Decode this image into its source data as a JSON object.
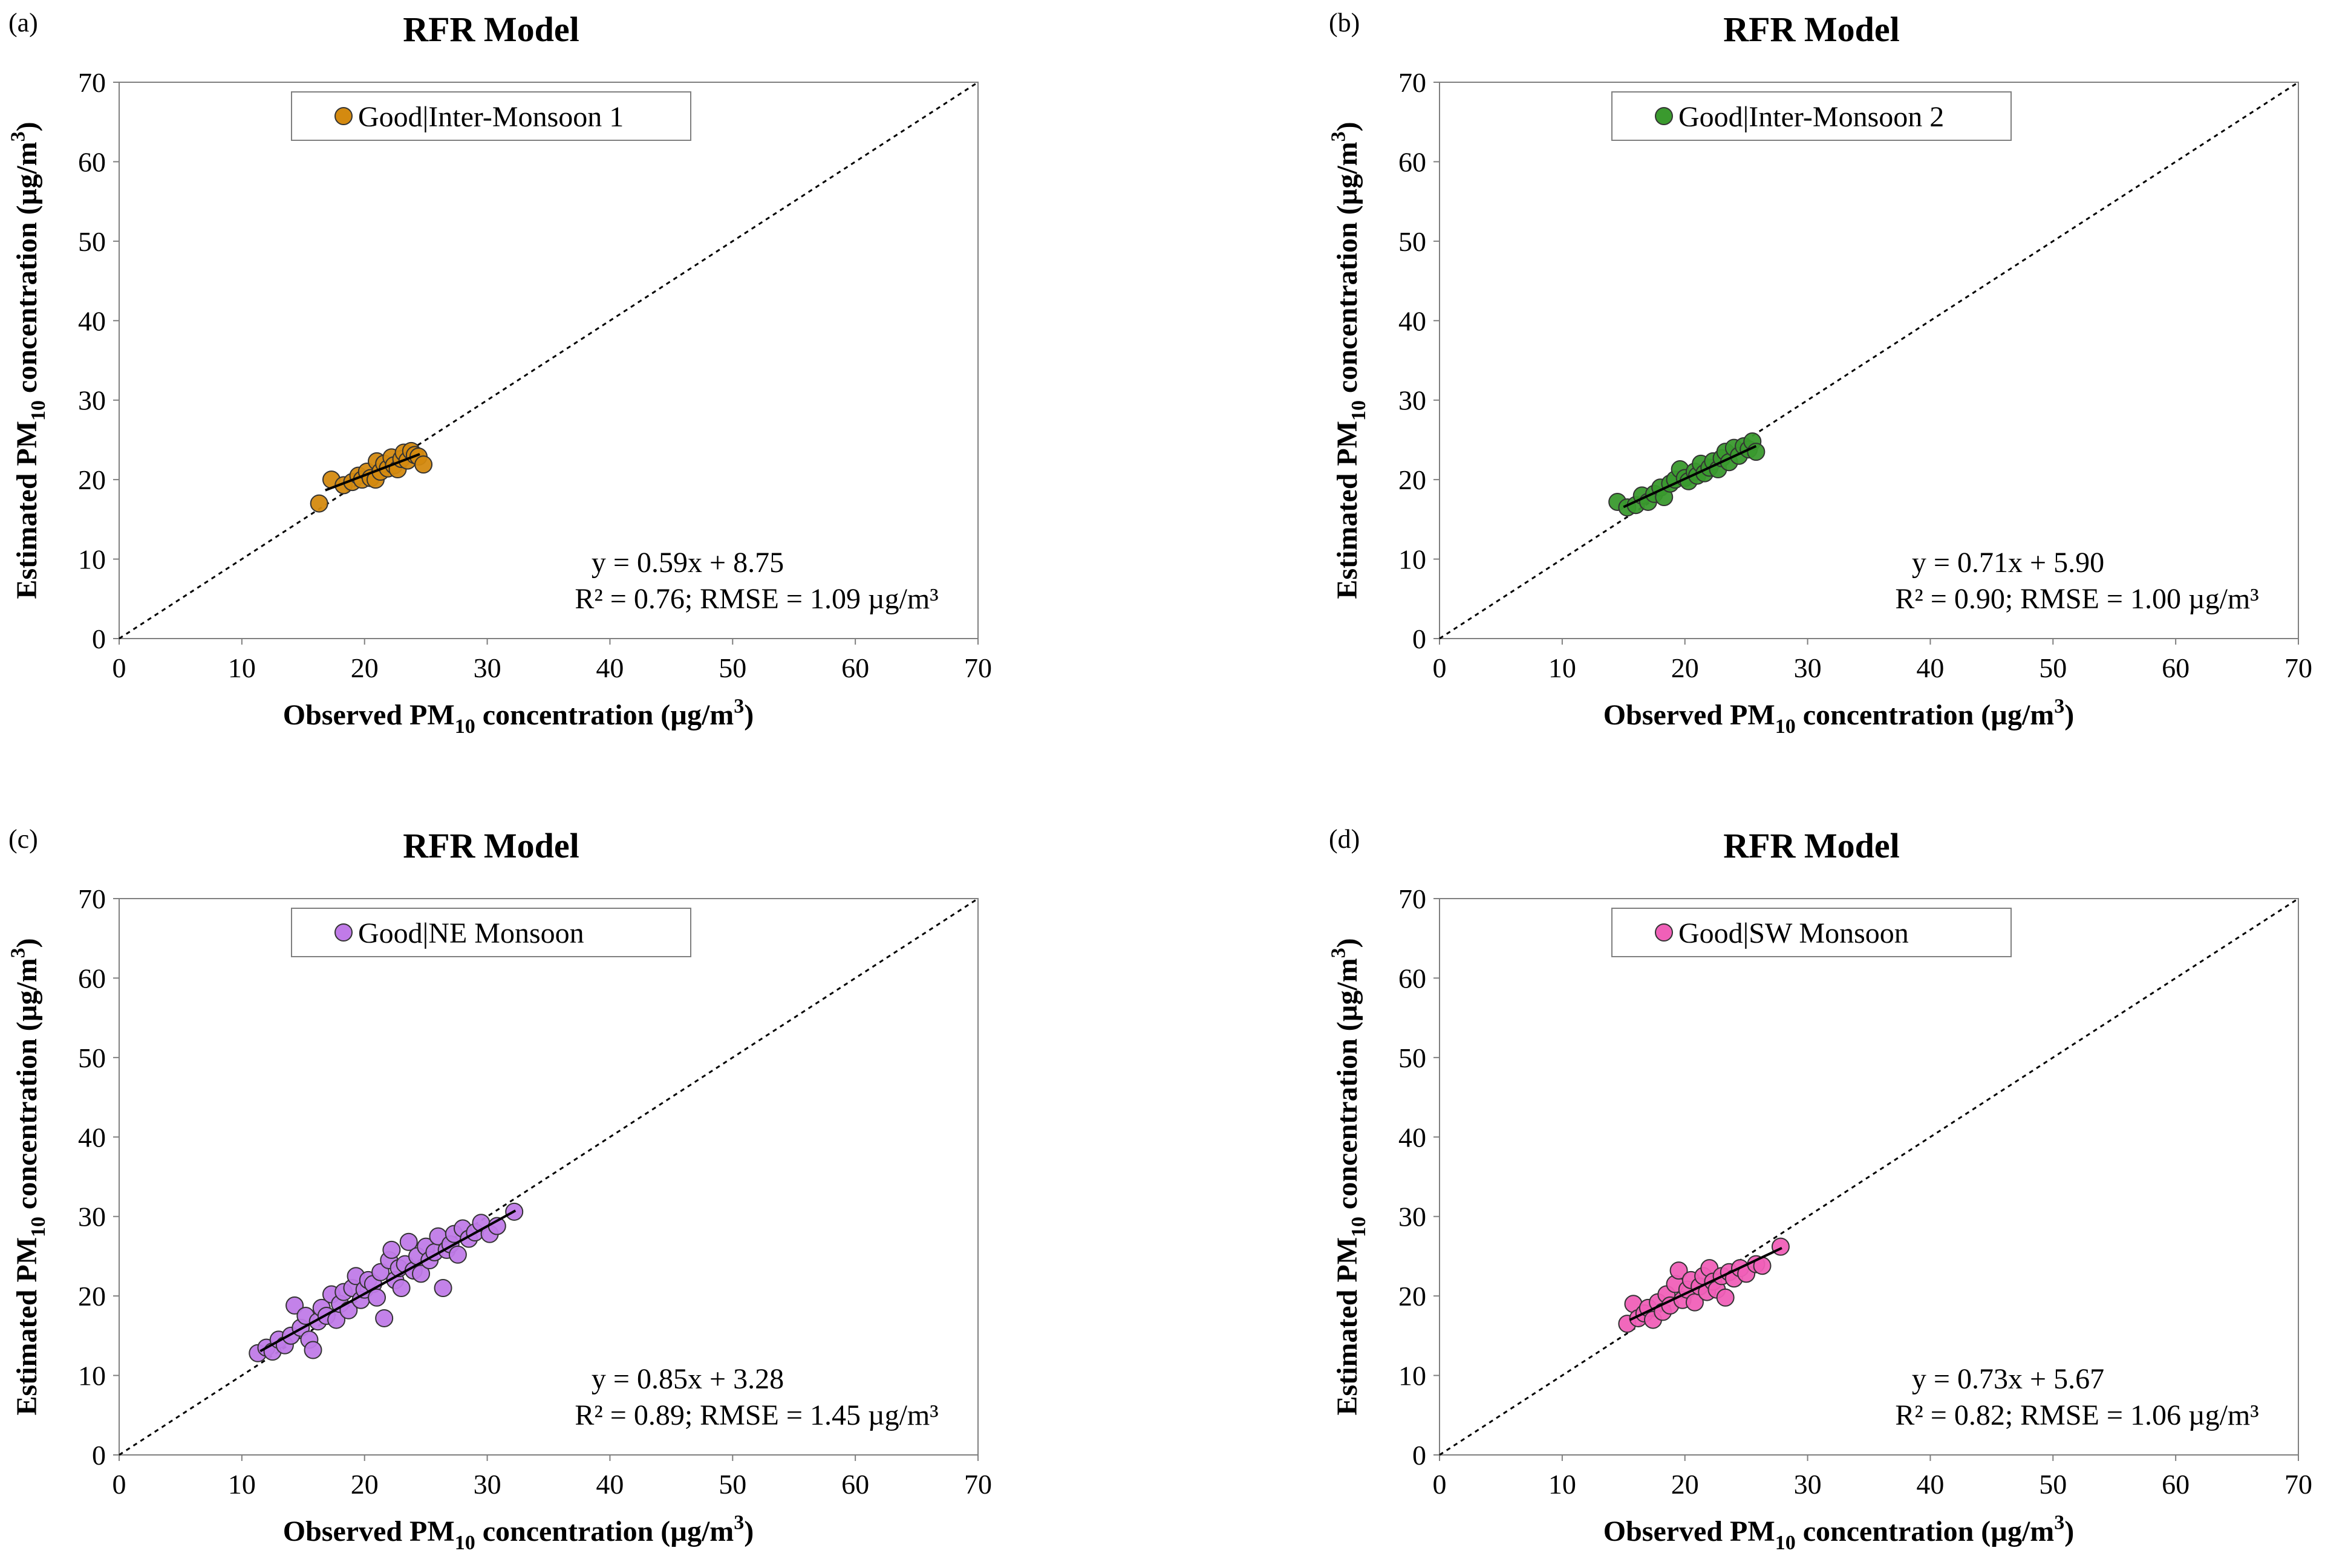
{
  "chart_data": [
    {
      "type": "scatter",
      "panel_label": "(a)",
      "title": "RFR Model",
      "xlabel": "Observed PM10 concentration (µg/m3)",
      "ylabel": "Estimated PM10 concentration (µg/m3)",
      "xlabel_parts": [
        "Observed PM",
        "10",
        " concentration (µg/m",
        "3",
        ")"
      ],
      "ylabel_parts": [
        "Estimated PM",
        "10",
        " concentration (µg/m",
        "3",
        ")"
      ],
      "xlim": [
        0,
        70
      ],
      "ylim": [
        0,
        70
      ],
      "xticks": [
        "0",
        "10",
        "20",
        "30",
        "40",
        "50",
        "60",
        "70"
      ],
      "yticks": [
        "0",
        "10",
        "20",
        "30",
        "40",
        "50",
        "60",
        "70"
      ],
      "legend": "Good|Inter-Monsoon 1",
      "legend_position": "top-center",
      "color": "#D48A10",
      "equation": "y = 0.59x + 8.75",
      "stats": "R² = 0.76; RMSE = 1.09 µg/m³",
      "fit": {
        "slope": 0.59,
        "intercept": 8.75,
        "x_range": [
          16.8,
          24.5
        ]
      },
      "points": [
        [
          16.3,
          17.0
        ],
        [
          17.3,
          20.0
        ],
        [
          18.3,
          19.3
        ],
        [
          19.0,
          19.7
        ],
        [
          19.5,
          20.5
        ],
        [
          19.8,
          20.0
        ],
        [
          20.2,
          21.0
        ],
        [
          20.5,
          20.2
        ],
        [
          20.9,
          20.0
        ],
        [
          21.0,
          22.3
        ],
        [
          21.3,
          21.0
        ],
        [
          21.6,
          22.0
        ],
        [
          21.9,
          21.4
        ],
        [
          22.2,
          22.8
        ],
        [
          22.4,
          21.8
        ],
        [
          22.7,
          21.3
        ],
        [
          23.0,
          22.6
        ],
        [
          23.2,
          23.4
        ],
        [
          23.5,
          22.4
        ],
        [
          23.8,
          23.6
        ],
        [
          24.1,
          23.1
        ],
        [
          24.4,
          22.9
        ],
        [
          24.8,
          21.9
        ]
      ]
    },
    {
      "type": "scatter",
      "panel_label": "(b)",
      "title": "RFR Model",
      "xlabel": "Observed PM10 concentration (µg/m3)",
      "ylabel": "Estimated PM10 concentration (µg/m3)",
      "xlabel_parts": [
        "Observed PM",
        "10",
        " concentration (µg/m",
        "3",
        ")"
      ],
      "ylabel_parts": [
        "Estimated PM",
        "10",
        " concentration (µg/m",
        "3",
        ")"
      ],
      "xlim": [
        0,
        70
      ],
      "ylim": [
        0,
        70
      ],
      "xticks": [
        "0",
        "10",
        "20",
        "30",
        "40",
        "50",
        "60",
        "70"
      ],
      "yticks": [
        "0",
        "10",
        "20",
        "30",
        "40",
        "50",
        "60",
        "70"
      ],
      "legend": "Good|Inter-Monsoon 2",
      "legend_position": "top-center",
      "color": "#3A9A2E",
      "equation": "y = 0.71x + 5.90",
      "stats": "R² = 0.90; RMSE = 1.00 µg/m³",
      "fit": {
        "slope": 0.71,
        "intercept": 5.9,
        "x_range": [
          15.0,
          25.8
        ]
      },
      "points": [
        [
          14.5,
          17.2
        ],
        [
          15.3,
          16.5
        ],
        [
          16.0,
          16.8
        ],
        [
          16.5,
          18.0
        ],
        [
          17.0,
          17.2
        ],
        [
          17.5,
          18.2
        ],
        [
          18.0,
          19.0
        ],
        [
          18.3,
          17.8
        ],
        [
          18.8,
          19.5
        ],
        [
          19.2,
          20.0
        ],
        [
          19.6,
          21.3
        ],
        [
          20.0,
          20.2
        ],
        [
          20.3,
          19.8
        ],
        [
          20.8,
          21.0
        ],
        [
          21.0,
          20.5
        ],
        [
          21.3,
          22.0
        ],
        [
          21.6,
          20.8
        ],
        [
          22.0,
          21.5
        ],
        [
          22.3,
          22.3
        ],
        [
          22.7,
          21.3
        ],
        [
          23.0,
          22.7
        ],
        [
          23.3,
          23.5
        ],
        [
          23.6,
          22.2
        ],
        [
          24.0,
          24.0
        ],
        [
          24.4,
          23.0
        ],
        [
          24.8,
          24.2
        ],
        [
          25.2,
          23.8
        ],
        [
          25.5,
          24.8
        ],
        [
          25.8,
          23.5
        ]
      ]
    },
    {
      "type": "scatter",
      "panel_label": "(c)",
      "title": "RFR Model",
      "xlabel": "Observed PM10 concentration (µg/m3)",
      "ylabel": "Estimated PM10 concentration (µg/m3)",
      "xlabel_parts": [
        "Observed PM",
        "10",
        " concentration (µg/m",
        "3",
        ")"
      ],
      "ylabel_parts": [
        "Estimated PM",
        "10",
        " concentration (µg/m",
        "3",
        ")"
      ],
      "xlim": [
        0,
        70
      ],
      "ylim": [
        0,
        70
      ],
      "xticks": [
        "0",
        "10",
        "20",
        "30",
        "40",
        "50",
        "60",
        "70"
      ],
      "yticks": [
        "0",
        "10",
        "20",
        "30",
        "40",
        "50",
        "60",
        "70"
      ],
      "legend": "Good|NE Monsoon",
      "legend_position": "top-center",
      "color": "#C07BE8",
      "equation": "y = 0.85x + 3.28",
      "stats": "R² = 0.89; RMSE = 1.45 µg/m³",
      "fit": {
        "slope": 0.85,
        "intercept": 3.28,
        "x_range": [
          11.5,
          32.3
        ]
      },
      "points": [
        [
          11.3,
          12.8
        ],
        [
          12.0,
          13.5
        ],
        [
          12.5,
          13.0
        ],
        [
          13.0,
          14.5
        ],
        [
          13.5,
          13.8
        ],
        [
          14.0,
          15.0
        ],
        [
          14.3,
          18.8
        ],
        [
          14.8,
          16.0
        ],
        [
          15.2,
          17.5
        ],
        [
          15.5,
          14.5
        ],
        [
          15.8,
          13.2
        ],
        [
          16.2,
          16.8
        ],
        [
          16.5,
          18.5
        ],
        [
          16.9,
          17.5
        ],
        [
          17.3,
          20.2
        ],
        [
          17.7,
          17.0
        ],
        [
          18.0,
          19.0
        ],
        [
          18.3,
          20.5
        ],
        [
          18.7,
          18.2
        ],
        [
          19.0,
          21.0
        ],
        [
          19.3,
          22.5
        ],
        [
          19.7,
          19.5
        ],
        [
          20.0,
          20.8
        ],
        [
          20.3,
          22.0
        ],
        [
          20.7,
          21.5
        ],
        [
          21.0,
          19.8
        ],
        [
          21.3,
          23.0
        ],
        [
          21.6,
          17.2
        ],
        [
          22.0,
          24.5
        ],
        [
          22.2,
          25.8
        ],
        [
          22.5,
          22.0
        ],
        [
          22.8,
          23.5
        ],
        [
          23.0,
          21.0
        ],
        [
          23.3,
          24.0
        ],
        [
          23.6,
          26.8
        ],
        [
          24.0,
          23.2
        ],
        [
          24.3,
          25.0
        ],
        [
          24.6,
          22.8
        ],
        [
          25.0,
          26.2
        ],
        [
          25.3,
          24.5
        ],
        [
          25.7,
          25.5
        ],
        [
          26.0,
          27.5
        ],
        [
          26.4,
          21.0
        ],
        [
          26.7,
          25.8
        ],
        [
          27.0,
          26.5
        ],
        [
          27.3,
          27.8
        ],
        [
          27.6,
          25.2
        ],
        [
          28.0,
          28.5
        ],
        [
          28.5,
          27.2
        ],
        [
          29.0,
          28.0
        ],
        [
          29.5,
          29.2
        ],
        [
          30.2,
          27.8
        ],
        [
          30.8,
          28.8
        ],
        [
          32.2,
          30.6
        ]
      ]
    },
    {
      "type": "scatter",
      "panel_label": "(d)",
      "title": "RFR Model",
      "xlabel": "Observed PM10 concentration (µg/m3)",
      "ylabel": "Estimated PM10 concentration (µg/m3)",
      "xlabel_parts": [
        "Observed PM",
        "10",
        " concentration (µg/m",
        "3",
        ")"
      ],
      "ylabel_parts": [
        "Estimated PM",
        "10",
        " concentration (µg/m",
        "3",
        ")"
      ],
      "xlim": [
        0,
        70
      ],
      "ylim": [
        0,
        70
      ],
      "xticks": [
        "0",
        "10",
        "20",
        "30",
        "40",
        "50",
        "60",
        "70"
      ],
      "yticks": [
        "0",
        "10",
        "20",
        "30",
        "40",
        "50",
        "60",
        "70"
      ],
      "legend": "Good|SW Monsoon",
      "legend_position": "top-center",
      "color": "#F060B8",
      "equation": "y = 0.73x + 5.67",
      "stats": "R² = 0.82; RMSE = 1.06 µg/m³",
      "fit": {
        "slope": 0.73,
        "intercept": 5.67,
        "x_range": [
          15.5,
          27.9
        ]
      },
      "points": [
        [
          15.3,
          16.5
        ],
        [
          15.8,
          19.0
        ],
        [
          16.2,
          17.2
        ],
        [
          16.7,
          17.8
        ],
        [
          17.0,
          18.5
        ],
        [
          17.4,
          17.0
        ],
        [
          17.8,
          19.2
        ],
        [
          18.2,
          18.0
        ],
        [
          18.5,
          20.2
        ],
        [
          18.8,
          18.8
        ],
        [
          19.2,
          21.5
        ],
        [
          19.5,
          23.2
        ],
        [
          19.8,
          19.5
        ],
        [
          20.2,
          20.8
        ],
        [
          20.5,
          22.0
        ],
        [
          20.8,
          19.2
        ],
        [
          21.2,
          21.2
        ],
        [
          21.5,
          22.5
        ],
        [
          21.8,
          20.5
        ],
        [
          22.0,
          23.5
        ],
        [
          22.3,
          21.8
        ],
        [
          22.6,
          20.8
        ],
        [
          23.0,
          22.5
        ],
        [
          23.3,
          19.8
        ],
        [
          23.6,
          23.0
        ],
        [
          24.0,
          22.2
        ],
        [
          24.5,
          23.5
        ],
        [
          25.0,
          22.8
        ],
        [
          25.8,
          24.0
        ],
        [
          26.3,
          23.8
        ],
        [
          27.8,
          26.2
        ]
      ]
    }
  ]
}
